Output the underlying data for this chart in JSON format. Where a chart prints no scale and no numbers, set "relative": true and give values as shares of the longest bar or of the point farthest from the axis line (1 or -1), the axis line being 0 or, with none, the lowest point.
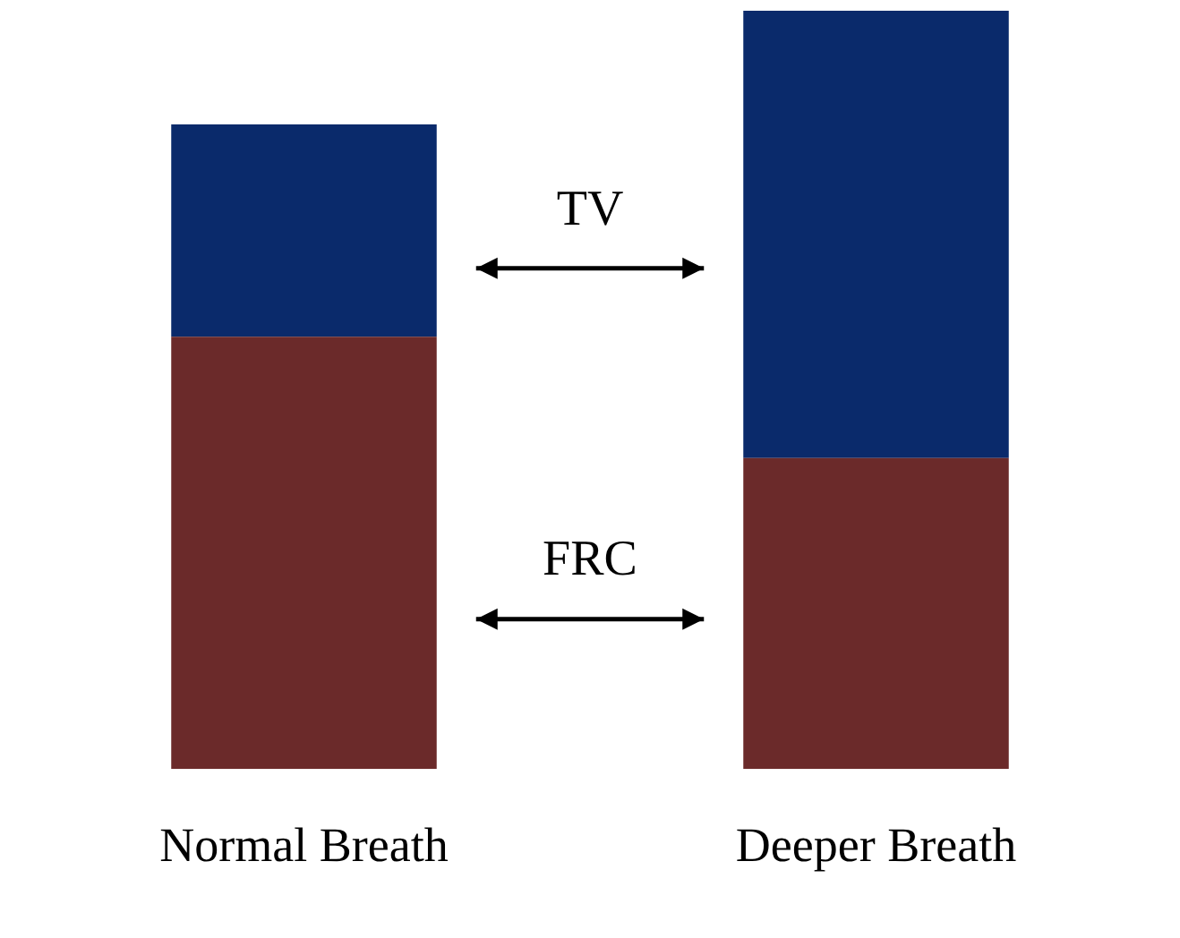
{
  "chart_data": {
    "type": "bar",
    "relative": true,
    "stacked": true,
    "categories": [
      "Normal Breath",
      "Deeper Breath"
    ],
    "series": [
      {
        "name": "FRC",
        "color": "#6b2a2a",
        "values": [
          0.57,
          0.41
        ]
      },
      {
        "name": "TV",
        "color": "#0a2a6b",
        "values": [
          0.28,
          0.59
        ]
      }
    ],
    "legend": false,
    "grid": false
  }
}
